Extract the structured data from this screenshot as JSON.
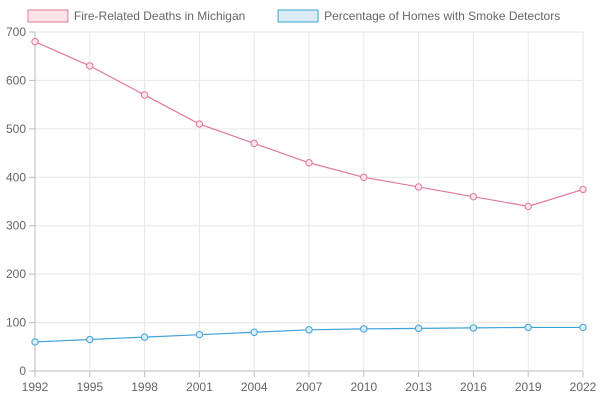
{
  "chart_data": {
    "type": "line",
    "title": "",
    "xlabel": "",
    "ylabel": "",
    "x": [
      "1992",
      "1995",
      "1998",
      "2001",
      "2004",
      "2007",
      "2010",
      "2013",
      "2016",
      "2019",
      "2022"
    ],
    "ylim": [
      0,
      700
    ],
    "yticks": [
      0,
      100,
      200,
      300,
      400,
      500,
      600,
      700
    ],
    "grid": true,
    "legend_position": "top",
    "series": [
      {
        "name": "Fire-Related Deaths in Michigan",
        "values": [
          680,
          630,
          570,
          510,
          470,
          430,
          400,
          380,
          360,
          340,
          375
        ],
        "color": "#e0799a",
        "fill": "#fde3ea"
      },
      {
        "name": "Percentage of Homes with Smoke Detectors",
        "values": [
          60,
          65,
          70,
          75,
          80,
          85,
          87,
          88,
          89,
          90,
          90
        ],
        "color": "#3fa3d8",
        "fill": "#d9ecf8"
      }
    ]
  }
}
